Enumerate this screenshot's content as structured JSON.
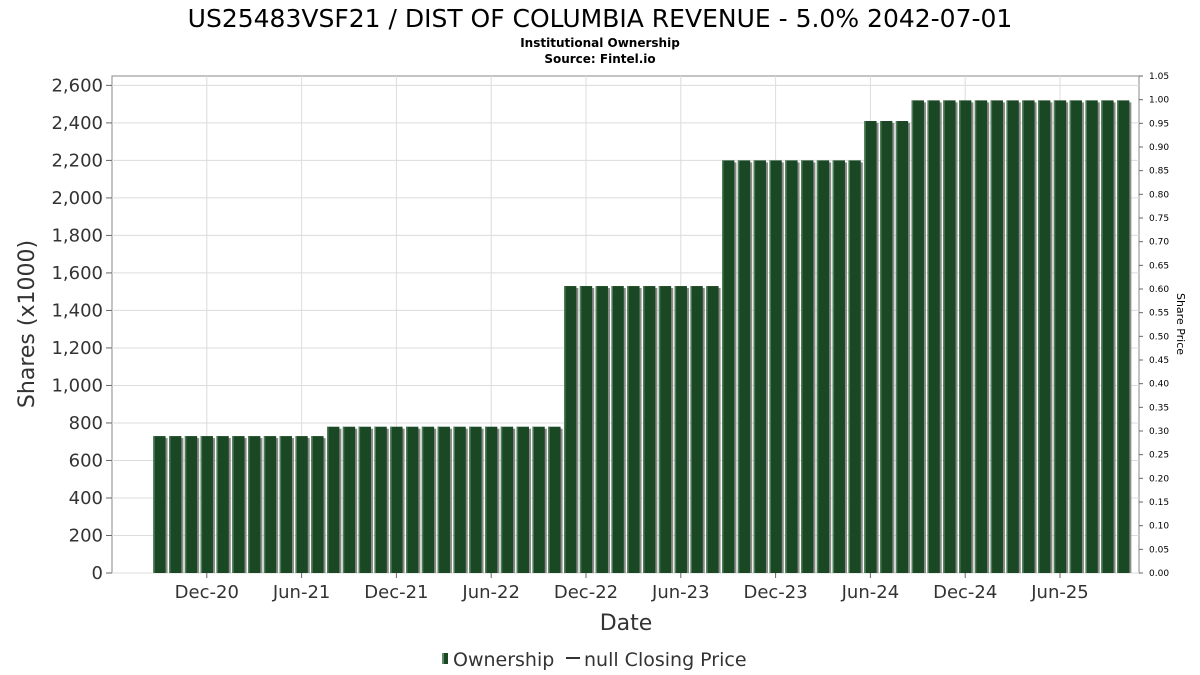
{
  "chart_data": {
    "type": "bar",
    "title": "US25483VSF21 / DIST OF COLUMBIA REVENUE - 5.0% 2042-07-01",
    "subtitle_lines": [
      "Institutional Ownership",
      "Source: Fintel.io"
    ],
    "xlabel": "Date",
    "ylabel": "Shares (x1000)",
    "y2label": "Share Price",
    "ylim": [
      0,
      2650
    ],
    "y2lim": [
      0,
      1.05
    ],
    "yticks": [
      0,
      200,
      400,
      600,
      800,
      1000,
      1200,
      1400,
      1600,
      1800,
      2000,
      2200,
      2400,
      2600
    ],
    "ytick_labels": [
      "0",
      "200",
      "400",
      "600",
      "800",
      "1,000",
      "1,200",
      "1,400",
      "1,600",
      "1,800",
      "2,000",
      "2,200",
      "2,400",
      "2,600"
    ],
    "y2ticks": [
      "0.00",
      "0.05",
      "0.10",
      "0.15",
      "0.20",
      "0.25",
      "0.30",
      "0.35",
      "0.40",
      "0.45",
      "0.50",
      "0.55",
      "0.60",
      "0.65",
      "0.70",
      "0.75",
      "0.80",
      "0.85",
      "0.90",
      "0.95",
      "1.00",
      "1.05"
    ],
    "x_date_range": [
      "2020-06-01",
      "2025-11-01"
    ],
    "xticks": [
      {
        "date": "2020-12-01",
        "label": "Dec-20"
      },
      {
        "date": "2021-06-01",
        "label": "Jun-21"
      },
      {
        "date": "2021-12-01",
        "label": "Dec-21"
      },
      {
        "date": "2022-06-01",
        "label": "Jun-22"
      },
      {
        "date": "2022-12-01",
        "label": "Dec-22"
      },
      {
        "date": "2023-06-01",
        "label": "Jun-23"
      },
      {
        "date": "2023-12-01",
        "label": "Dec-23"
      },
      {
        "date": "2024-06-01",
        "label": "Jun-24"
      },
      {
        "date": "2024-12-01",
        "label": "Dec-24"
      },
      {
        "date": "2025-06-01",
        "label": "Jun-25"
      }
    ],
    "bar_interval_months": 1,
    "series": [
      {
        "name": "Ownership",
        "color": "#1a4724",
        "shadow_color": "#8a8a8a",
        "steps": [
          {
            "from": "2020-09",
            "to": "2021-07",
            "value": 730
          },
          {
            "from": "2021-08",
            "to": "2022-10",
            "value": 780
          },
          {
            "from": "2022-11",
            "to": "2023-08",
            "value": 1530
          },
          {
            "from": "2023-09",
            "to": "2024-05",
            "value": 2200
          },
          {
            "from": "2024-06",
            "to": "2024-08",
            "value": 2410
          },
          {
            "from": "2024-09",
            "to": "2025-10",
            "value": 2520
          }
        ]
      },
      {
        "name": "null Closing Price",
        "color": "#333333",
        "values": []
      }
    ],
    "grid": true,
    "legend_position": "bottom-center"
  }
}
